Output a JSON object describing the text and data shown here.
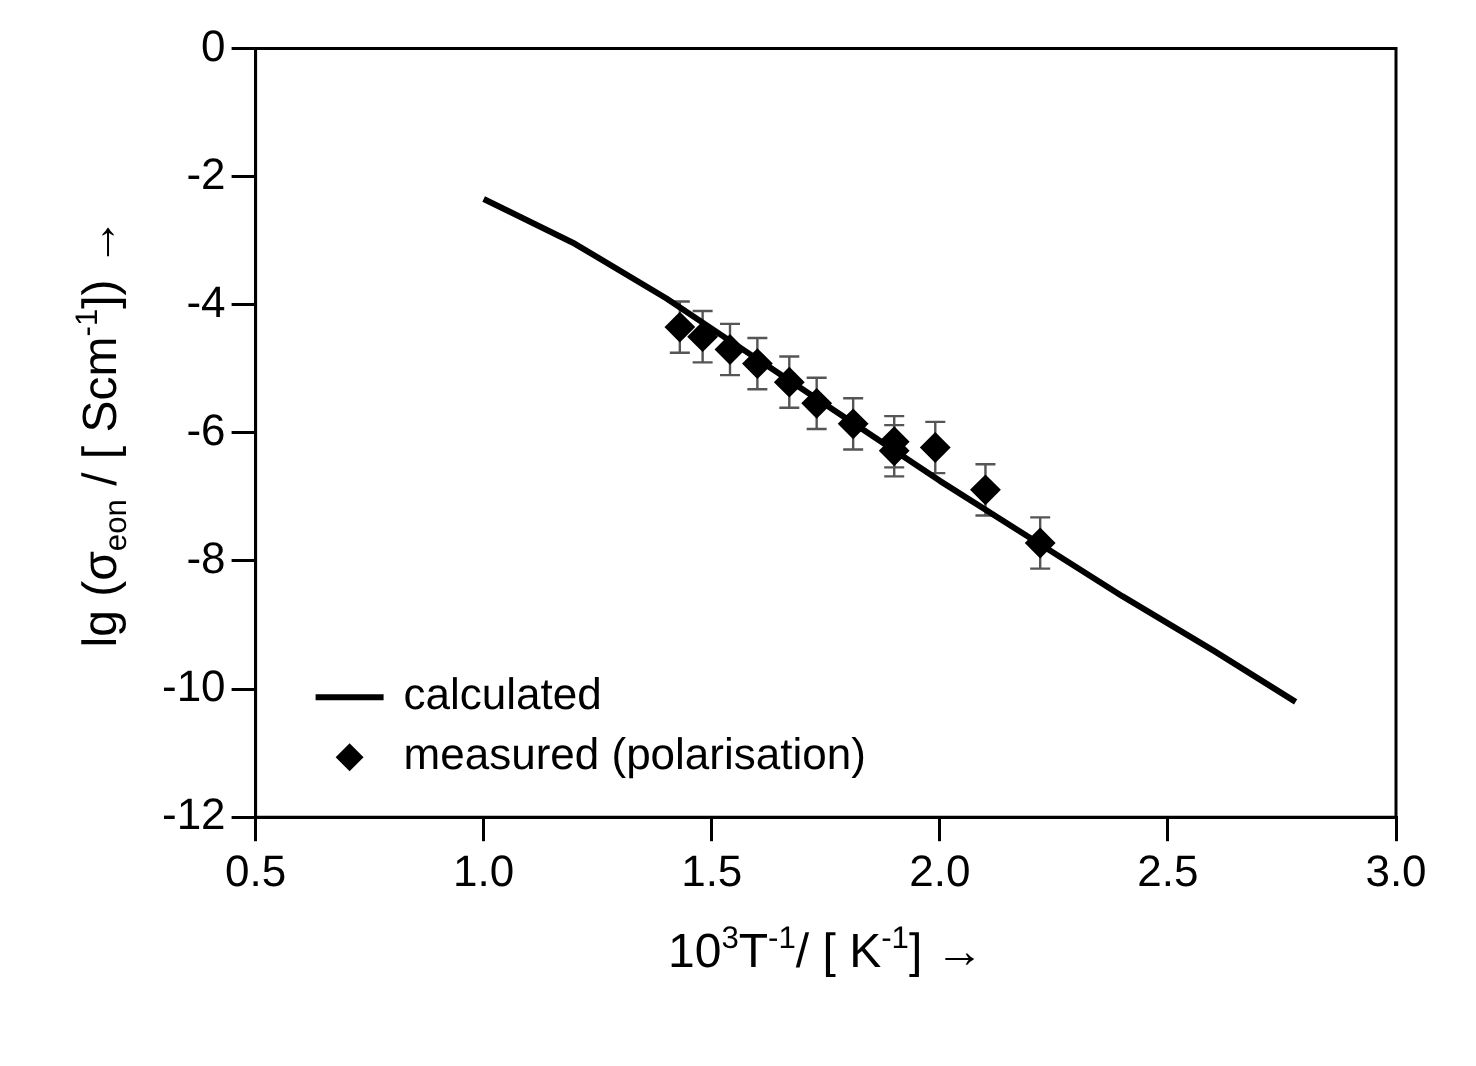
{
  "chart_data": {
    "type": "scatter",
    "xlabel": "10$^{3}$T$^{-1}$/ [ K$^{-1}$] →",
    "ylabel": "lg (σ$_{eon}$ / [ Scm$^{-1}$]) →",
    "xlim": [
      0.5,
      3.0
    ],
    "xticks": [
      {
        "value": 0.5,
        "label": "0.5"
      },
      {
        "value": 1.0,
        "label": "1.0"
      },
      {
        "value": 1.5,
        "label": "1.5"
      },
      {
        "value": 2.0,
        "label": "2.0"
      },
      {
        "value": 2.5,
        "label": "2.5"
      },
      {
        "value": 3.0,
        "label": "3.0"
      }
    ],
    "ylim": [
      -12,
      0
    ],
    "yticks": [
      -12,
      -10,
      -8,
      -6,
      -4,
      -2,
      0
    ],
    "grid": false,
    "legend": "bottom left",
    "series": [
      {
        "name": "calculated",
        "type": "line",
        "marker": "none",
        "line_style": "solid",
        "color": "#000000",
        "x": [
          1.0,
          1.2,
          1.4,
          1.6,
          1.8,
          2.0,
          2.2,
          2.4,
          2.6,
          2.78
        ],
        "values": [
          -2.35,
          -3.05,
          -3.9,
          -4.85,
          -5.8,
          -6.75,
          -7.65,
          -8.55,
          -9.4,
          -10.2
        ]
      },
      {
        "name": "measured (polarisation)",
        "type": "scatter",
        "marker": "diamond",
        "color": "#000000",
        "x": [
          1.43,
          1.48,
          1.54,
          1.6,
          1.67,
          1.73,
          1.81,
          1.9,
          1.9,
          1.99,
          2.1,
          2.22
        ],
        "values": [
          -4.35,
          -4.5,
          -4.7,
          -4.92,
          -5.21,
          -5.54,
          -5.86,
          -6.14,
          -6.28,
          -6.23,
          -6.89,
          -7.72
        ],
        "errors": [
          0.4,
          0.4,
          0.4,
          0.4,
          0.4,
          0.4,
          0.4,
          0.4,
          0.4,
          0.4,
          0.4,
          0.4
        ]
      }
    ]
  }
}
